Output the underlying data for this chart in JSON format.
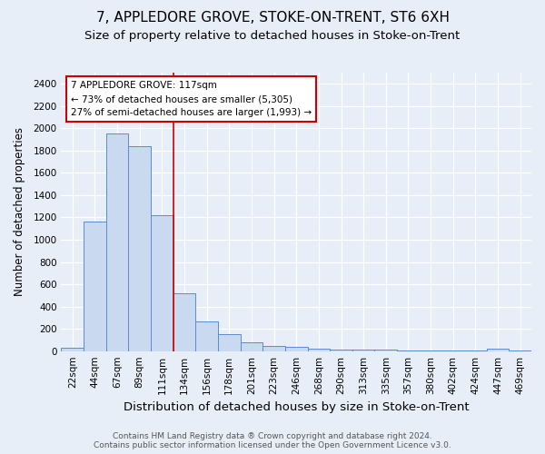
{
  "title1": "7, APPLEDORE GROVE, STOKE-ON-TRENT, ST6 6XH",
  "title2": "Size of property relative to detached houses in Stoke-on-Trent",
  "xlabel": "Distribution of detached houses by size in Stoke-on-Trent",
  "ylabel": "Number of detached properties",
  "categories": [
    "22sqm",
    "44sqm",
    "67sqm",
    "89sqm",
    "111sqm",
    "134sqm",
    "156sqm",
    "178sqm",
    "201sqm",
    "223sqm",
    "246sqm",
    "268sqm",
    "290sqm",
    "313sqm",
    "335sqm",
    "357sqm",
    "380sqm",
    "402sqm",
    "424sqm",
    "447sqm",
    "469sqm"
  ],
  "values": [
    30,
    1160,
    1950,
    1840,
    1220,
    520,
    265,
    155,
    80,
    50,
    40,
    20,
    15,
    10,
    12,
    8,
    5,
    5,
    3,
    20,
    3
  ],
  "bar_color": "#c9d9ef",
  "bar_edge_color": "#5b8bd0",
  "vline_x": 4.5,
  "vline_color": "#cc0000",
  "annotation_title": "7 APPLEDORE GROVE: 117sqm",
  "annotation_line1": "← 73% of detached houses are smaller (5,305)",
  "annotation_line2": "27% of semi-detached houses are larger (1,993) →",
  "annotation_box_color": "white",
  "annotation_box_edge": "#cc0000",
  "ylim": [
    0,
    2500
  ],
  "yticks": [
    0,
    200,
    400,
    600,
    800,
    1000,
    1200,
    1400,
    1600,
    1800,
    2000,
    2200,
    2400
  ],
  "footnote1": "Contains HM Land Registry data ® Crown copyright and database right 2024.",
  "footnote2": "Contains public sector information licensed under the Open Government Licence v3.0.",
  "bg_color": "#e8eef8",
  "plot_bg_color": "#e8eef8",
  "grid_color": "white",
  "title1_fontsize": 11,
  "title2_fontsize": 9.5,
  "xlabel_fontsize": 9.5,
  "ylabel_fontsize": 8.5,
  "tick_fontsize": 7.5,
  "annot_fontsize": 7.5,
  "footnote_fontsize": 6.5
}
